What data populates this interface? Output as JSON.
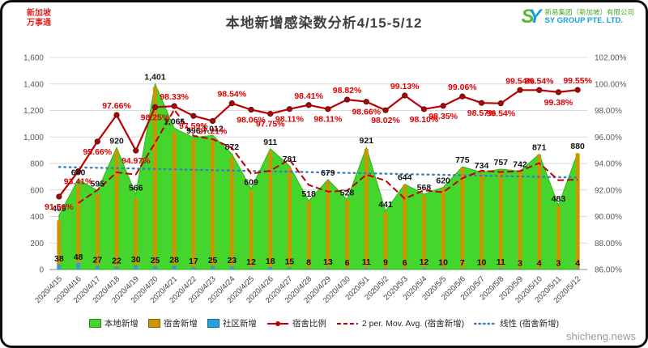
{
  "page": {
    "title": "本地新增感染数分析4/15-5/12",
    "watermark": "shicheng.news",
    "logo_topleft": {
      "line1": "新加坡",
      "line2": "万事通"
    },
    "logo_topright": {
      "mark_s": "S",
      "mark_y": "Y",
      "company_cn": "新易集团（新加坡）有限公司",
      "company_en": "SY GROUP PTE. LTD."
    }
  },
  "colors": {
    "title_text": "#3F3F3F",
    "axis_text": "#595959",
    "grid": "#D9D9D9",
    "axis_line": "#8C8C8C",
    "local_green": "#44D62C",
    "dorm_gold": "#C99700",
    "community_blue": "#2B9FD9",
    "ratio_red": "#C00000",
    "ratio_label_red": "#DD0000",
    "trend_blue": "#3A7EBF",
    "bar_label": "#141414",
    "watermark_gray": "#9B9B9B",
    "logo_red": "#E02A2A",
    "sy_green": "#5CB531",
    "sy_blue": "#16A0DB"
  },
  "chart_data": {
    "type": "combo (area + bar + line)",
    "title": "本地新增感染数分析4/15-5/12",
    "grid": true,
    "legend_position": "bottom",
    "categories": [
      "2020/4/15",
      "2020/4/16",
      "2020/4/17",
      "2020/4/18",
      "2020/4/19",
      "2020/4/20",
      "2020/4/21",
      "2020/4/22",
      "2020/4/23",
      "2020/4/24",
      "2020/4/25",
      "2020/4/26",
      "2020/4/27",
      "2020/4/28",
      "2020/4/29",
      "2020/4/30",
      "2020/5/1",
      "2020/5/2",
      "2020/5/3",
      "2020/5/4",
      "2020/5/5",
      "2020/5/6",
      "2020/5/7",
      "2020/5/8",
      "2020/5/9",
      "2020/5/10",
      "2020/5/11",
      "2020/5/12"
    ],
    "left_axis": {
      "min": 0,
      "max": 1600,
      "step": 200,
      "labels": [
        "0",
        "200",
        "400",
        "600",
        "800",
        "1,000",
        "1,200",
        "1,400",
        "1,600"
      ]
    },
    "right_axis": {
      "min": 86,
      "max": 102,
      "step": 2,
      "labels": [
        "86.00%",
        "88.00%",
        "90.00%",
        "92.00%",
        "94.00%",
        "96.00%",
        "98.00%",
        "100.00%",
        "102.00%"
      ]
    },
    "series": [
      {
        "name": "本地新增",
        "chart": "area",
        "axis": "left",
        "color": "#44D62C",
        "values": [
          409,
          680,
          595,
          920,
          566,
          1401,
          1066,
          996,
          1012,
          872,
          609,
          911,
          781,
          518,
          679,
          528,
          921,
          441,
          644,
          568,
          620,
          775,
          734,
          757,
          742,
          871,
          483,
          880
        ],
        "labels": [
          "409",
          "680",
          "595",
          "920",
          "566",
          "1,401",
          "1,066",
          "996",
          "1,012",
          "872",
          "609",
          "911",
          "781",
          "518",
          "679",
          "528",
          "921",
          "441",
          "644",
          "568",
          "620",
          "775",
          "734",
          "757",
          "742",
          "871",
          "483",
          "880"
        ]
      },
      {
        "name": "宿舍新增",
        "chart": "bar",
        "axis": "left",
        "color": "#C99700",
        "values": [
          371,
          632,
          568,
          898,
          536,
          1376,
          1038,
          979,
          987,
          849,
          597,
          893,
          766,
          510,
          666,
          522,
          910,
          432,
          638,
          556,
          610,
          768,
          724,
          746,
          739,
          867,
          480,
          876
        ]
      },
      {
        "name": "社区新增",
        "chart": "bar",
        "axis": "left",
        "color": "#2B9FD9",
        "values": [
          38,
          48,
          27,
          22,
          30,
          25,
          28,
          17,
          25,
          23,
          12,
          18,
          15,
          8,
          13,
          6,
          11,
          9,
          6,
          12,
          10,
          7,
          10,
          11,
          3,
          4,
          3,
          4
        ],
        "labels": [
          "38",
          "48",
          "27",
          "22",
          "30",
          "25",
          "28",
          "17",
          "25",
          "23",
          "12",
          "18",
          "15",
          "8",
          "13",
          "6",
          "11",
          "9",
          "6",
          "12",
          "10",
          "7",
          "10",
          "11",
          "3",
          "4",
          "3",
          "4"
        ]
      },
      {
        "name": "宿舍比例",
        "chart": "line",
        "axis": "right",
        "color": "#C00000",
        "values": [
          91.5,
          93.41,
          95.66,
          97.66,
          94.97,
          98.25,
          98.33,
          97.59,
          97.21,
          98.54,
          98.06,
          97.75,
          98.11,
          98.41,
          98.11,
          98.82,
          98.66,
          98.02,
          99.13,
          98.1,
          98.35,
          99.06,
          98.57,
          98.54,
          99.54,
          99.54,
          99.38,
          99.55
        ],
        "labels": [
          "91.50%",
          "93.41%",
          "95.66%",
          "97.66%",
          "94.97%",
          "98.25%",
          "98.33%",
          "97.59%",
          "97.21%",
          "98.54%",
          "98.06%",
          "97.75%",
          "98.11%",
          "98.41%",
          "98.11%",
          "98.82%",
          "98.66%",
          "98.02%",
          "99.13%",
          "98.10%",
          "98.35%",
          "99.06%",
          "98.57%",
          "98.54%",
          "99.54%",
          "99.54%",
          "99.38%",
          "99.55%"
        ]
      },
      {
        "name": "2 per. Mov. Avg. (宿舍新增)",
        "chart": "moving-average",
        "window": 2,
        "source": "宿舍新增",
        "axis": "left",
        "color": "#C00000",
        "dash": "dashed"
      },
      {
        "name": "线性 (宿舍新增)",
        "chart": "linear-trend",
        "source": "宿舍新增",
        "axis": "left",
        "color": "#3A7EBF",
        "dash": "dotted"
      }
    ]
  }
}
